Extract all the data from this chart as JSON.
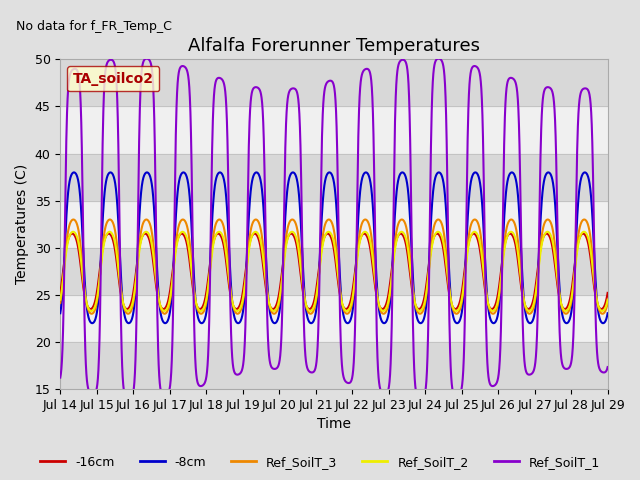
{
  "title": "Alfalfa Forerunner Temperatures",
  "no_data_text": "No data for f_FR_Temp_C",
  "legend_box_label": "TA_soilco2",
  "xlabel": "Time",
  "ylabel": "Temperatures (C)",
  "ylim": [
    15,
    50
  ],
  "x_tick_labels": [
    "Jul 14",
    "Jul 15",
    "Jul 16",
    "Jul 17",
    "Jul 18",
    "Jul 19",
    "Jul 20",
    "Jul 21",
    "Jul 22",
    "Jul 23",
    "Jul 24",
    "Jul 25",
    "Jul 26",
    "Jul 27",
    "Jul 28",
    "Jul 29"
  ],
  "series": [
    {
      "label": "-16cm",
      "color": "#cc0000",
      "lw": 1.5
    },
    {
      "label": "-8cm",
      "color": "#0000cc",
      "lw": 1.5
    },
    {
      "label": "Ref_SoilT_3",
      "color": "#ee8800",
      "lw": 1.5
    },
    {
      "label": "Ref_SoilT_2",
      "color": "#eeee00",
      "lw": 1.5
    },
    {
      "label": "Ref_SoilT_1",
      "color": "#8800cc",
      "lw": 1.5
    }
  ],
  "bg_color": "#e0e0e0",
  "plot_bg_color": "#e8e8e8",
  "light_band_color": "#f0f0f0",
  "dark_band_color": "#d8d8d8",
  "title_fontsize": 13,
  "label_fontsize": 10,
  "tick_fontsize": 9,
  "legend_box_facecolor": "#ffffcc",
  "legend_box_edgecolor": "#aa0000",
  "legend_box_textcolor": "#aa0000"
}
